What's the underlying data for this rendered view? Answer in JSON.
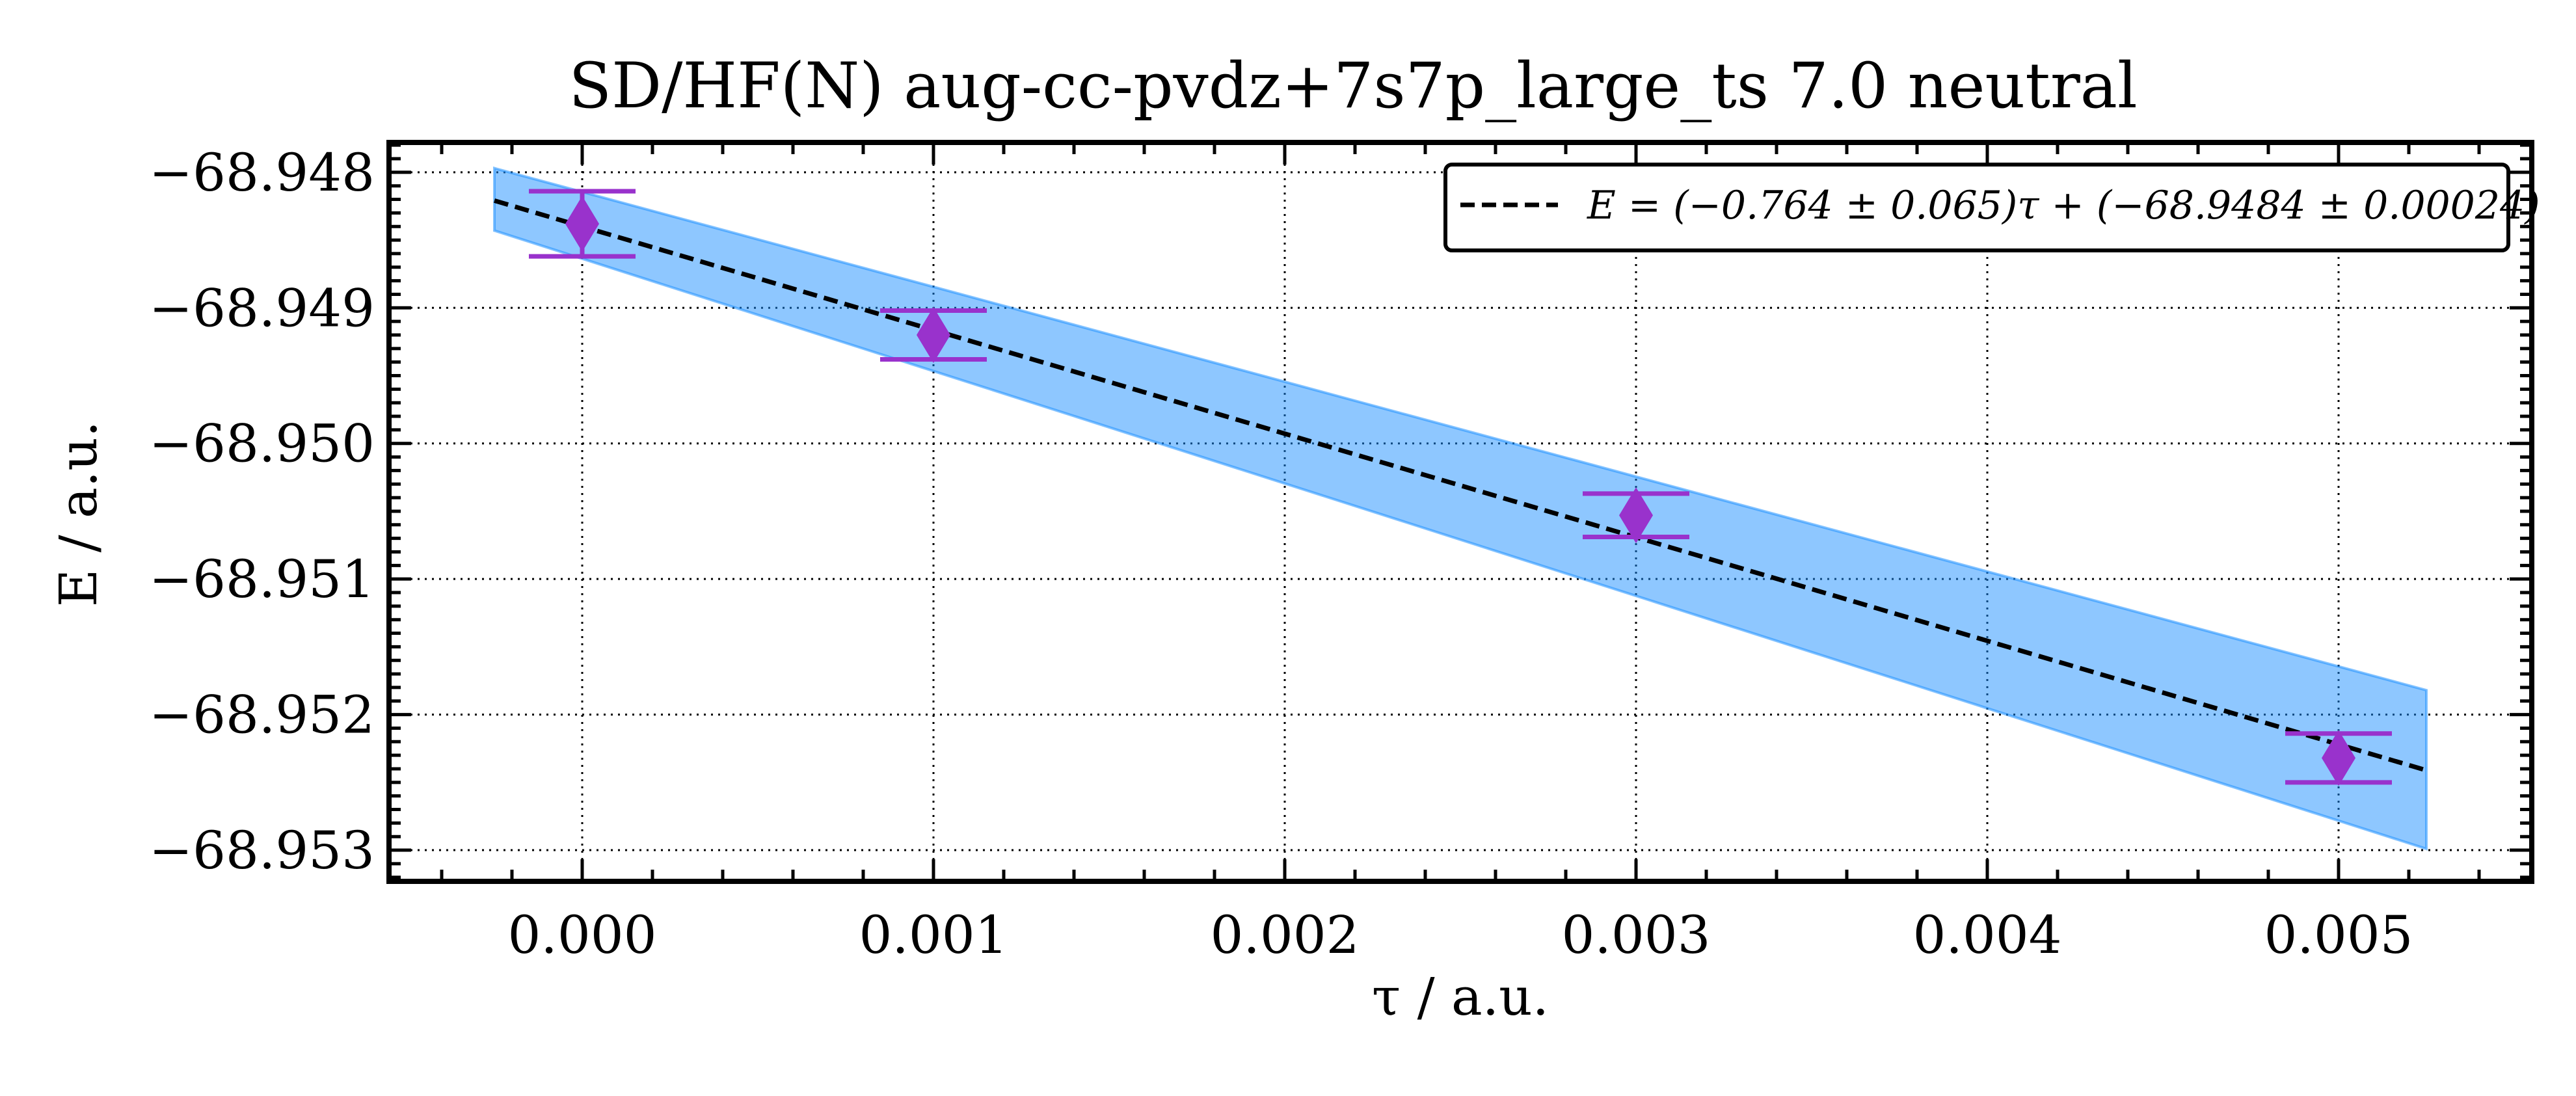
{
  "chart_data": {
    "type": "scatter",
    "title": "SD/HF(N) aug-cc-pvdz+7s7p_large_ts 7.0 neutral",
    "xlabel": "τ / a.u.",
    "ylabel": "E / a.u.",
    "xlim": [
      -0.00055,
      0.00555
    ],
    "ylim": [
      -68.95323,
      -68.94778
    ],
    "x_ticks": [
      0.0,
      0.001,
      0.002,
      0.003,
      0.004,
      0.005
    ],
    "x_tick_labels": [
      "0.000",
      "0.001",
      "0.002",
      "0.003",
      "0.004",
      "0.005"
    ],
    "y_ticks": [
      -68.948,
      -68.949,
      -68.95,
      -68.951,
      -68.952,
      -68.953
    ],
    "y_tick_labels": [
      "−68.948",
      "−68.949",
      "−68.950",
      "−68.951",
      "−68.952",
      "−68.953"
    ],
    "grid": true,
    "legend_position": "top-right",
    "series": [
      {
        "kind": "errorbar",
        "marker": "diamond",
        "color": "#9932CC",
        "x": [
          0.0,
          0.001,
          0.003,
          0.005
        ],
        "y": [
          -68.94838,
          -68.9492,
          -68.95053,
          -68.95232
        ],
        "yerr": [
          0.00024,
          0.00018,
          0.00016,
          0.00018
        ]
      },
      {
        "kind": "line",
        "style": "dashed",
        "color": "#000000",
        "legend": "E = (−0.764 ± 0.065)τ + (−68.9484 ± 0.00024)",
        "slope": -0.764,
        "intercept": -68.9484,
        "x_range": [
          -0.00025,
          0.00525
        ]
      },
      {
        "kind": "band",
        "color": "#1E90FF",
        "x": [
          -0.00025,
          0.00525
        ],
        "y_upper": [
          -68.94797,
          -68.95182
        ],
        "y_lower": [
          -68.94843,
          -68.95299
        ]
      }
    ]
  }
}
